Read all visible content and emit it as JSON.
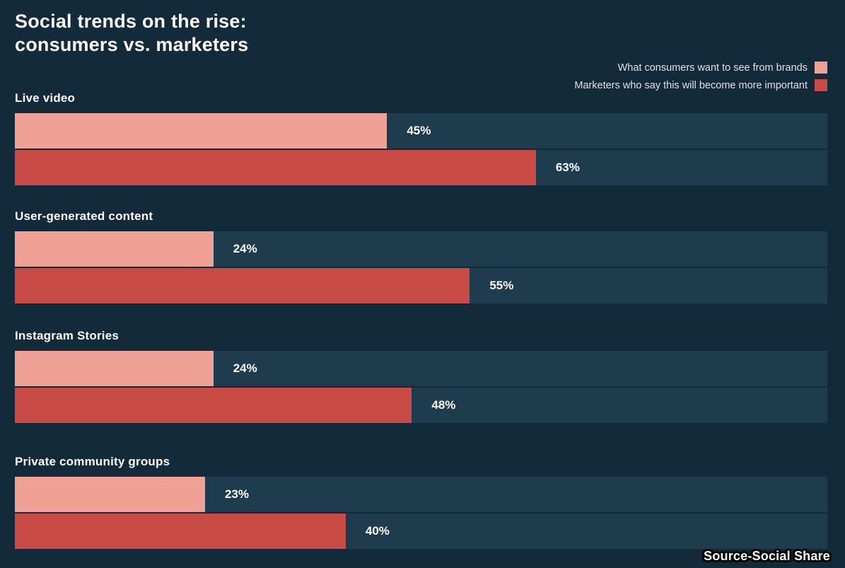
{
  "title": {
    "line1": "Social trends on the rise:",
    "line2": "consumers vs. marketers"
  },
  "legend": [
    {
      "label": "What consumers want to see from brands",
      "color": "#f0a195"
    },
    {
      "label": "Marketers who say this will become more important",
      "color": "#c84b45"
    }
  ],
  "source": "Source-Social Share",
  "chart_data": {
    "type": "bar",
    "orientation": "horizontal",
    "title": "Social trends on the rise: consumers vs. marketers",
    "categories": [
      "Live video",
      "User-generated content",
      "Instagram Stories",
      "Private community groups"
    ],
    "series": [
      {
        "name": "What consumers want to see from brands",
        "color": "#f0a195",
        "values": [
          45,
          24,
          24,
          23
        ]
      },
      {
        "name": "Marketers who say this will become more important",
        "color": "#c84b45",
        "values": [
          63,
          55,
          48,
          40
        ]
      }
    ],
    "value_format": "percent",
    "xlim": [
      0,
      100
    ],
    "grid": false,
    "legend_position": "top-right",
    "colors": {
      "background": "#122a3a",
      "track": "#1e3c4e",
      "text": "#fdfdfd"
    },
    "source": "Source-Social Share"
  }
}
